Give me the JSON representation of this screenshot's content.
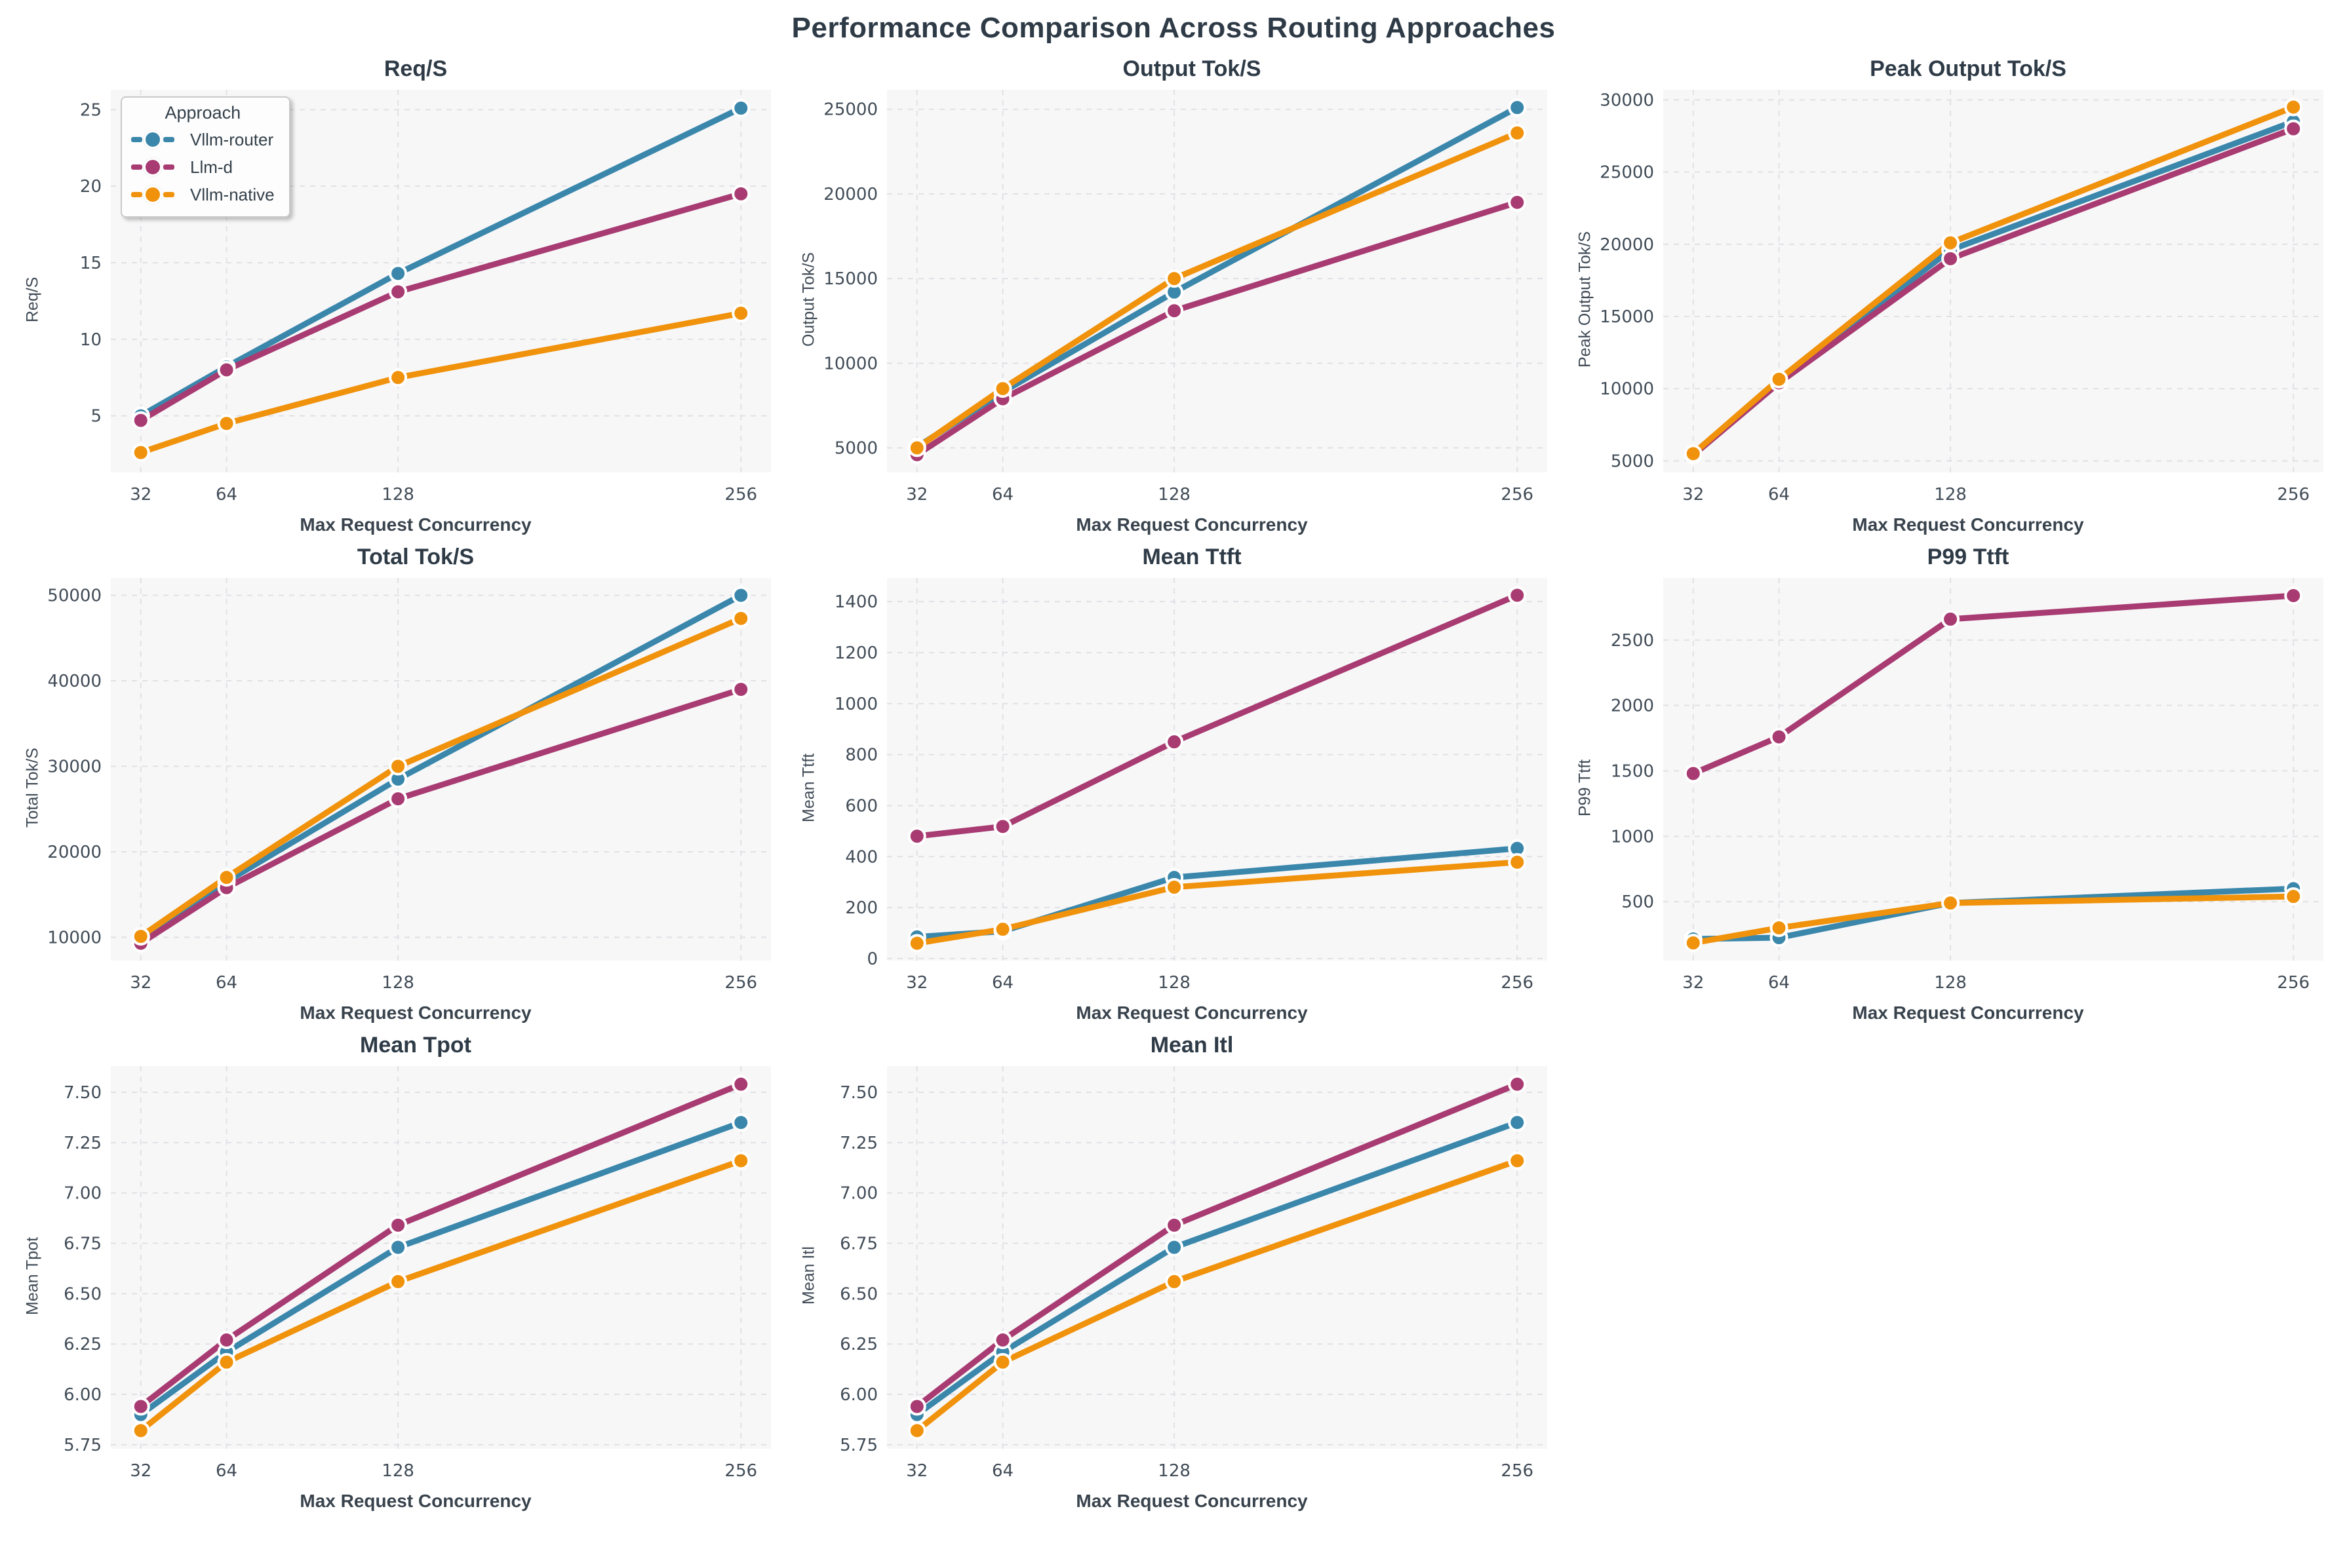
{
  "figure": {
    "title": "Performance Comparison Across Routing Approaches"
  },
  "legend": {
    "title": "Approach",
    "items": [
      {
        "label": "Vllm-router"
      },
      {
        "label": "Llm-d"
      },
      {
        "label": "Vllm-native"
      }
    ]
  },
  "palette": {
    "Vllm-router": "#3A87AB",
    "Llm-d": "#A83B72",
    "Vllm-native": "#F0920B"
  },
  "style": {
    "axes_bg": "#F7F7F8",
    "grid": "#E1E1E5",
    "tick_color": "#414C57",
    "marker_edge": "#FFFFFF"
  },
  "axis": {
    "xlabel": "Max Request Concurrency",
    "x": [
      32,
      64,
      128,
      256
    ],
    "xticks": [
      "32",
      "64",
      "128",
      "256"
    ],
    "xlim": [
      20.8,
      267.2
    ]
  },
  "chart_data": [
    {
      "type": "line",
      "title": "Req/S",
      "ylabel": "Req/S",
      "xlabel": "Max Request Concurrency",
      "x": [
        32,
        64,
        128,
        256
      ],
      "yticks": [
        "5",
        "10",
        "15",
        "20",
        "25"
      ],
      "ylim": [
        1.3,
        26.3
      ],
      "legend_position": "upper-left",
      "grid": true,
      "series": [
        {
          "name": "Vllm-router",
          "values": [
            5.0,
            8.2,
            14.3,
            25.1
          ]
        },
        {
          "name": "Llm-d",
          "values": [
            4.7,
            8.0,
            13.1,
            19.5
          ]
        },
        {
          "name": "Vllm-native",
          "values": [
            2.6,
            4.5,
            7.5,
            11.7
          ]
        }
      ]
    },
    {
      "type": "line",
      "title": "Output Tok/S",
      "ylabel": "Output Tok/S",
      "xlabel": "Max Request Concurrency",
      "x": [
        32,
        64,
        128,
        256
      ],
      "yticks": [
        "5000",
        "10000",
        "15000",
        "20000",
        "25000"
      ],
      "ylim": [
        3550,
        26150
      ],
      "grid": true,
      "series": [
        {
          "name": "Vllm-router",
          "values": [
            5050,
            8300,
            14200,
            25100
          ]
        },
        {
          "name": "Llm-d",
          "values": [
            4600,
            7900,
            13100,
            19500
          ]
        },
        {
          "name": "Vllm-native",
          "values": [
            5000,
            8500,
            15000,
            23600
          ]
        }
      ]
    },
    {
      "type": "line",
      "title": "Peak Output Tok/S",
      "ylabel": "Peak Output Tok/S",
      "xlabel": "Max Request Concurrency",
      "x": [
        32,
        64,
        128,
        256
      ],
      "yticks": [
        "5000",
        "10000",
        "15000",
        "20000",
        "25000",
        "30000"
      ],
      "ylim": [
        4200,
        30700
      ],
      "grid": true,
      "series": [
        {
          "name": "Vllm-router",
          "values": [
            5450,
            10500,
            19600,
            28500
          ]
        },
        {
          "name": "Llm-d",
          "values": [
            5400,
            10400,
            19000,
            28000
          ]
        },
        {
          "name": "Vllm-native",
          "values": [
            5500,
            10650,
            20100,
            29500
          ]
        }
      ]
    },
    {
      "type": "line",
      "title": "Total Tok/S",
      "ylabel": "Total Tok/S",
      "xlabel": "Max Request Concurrency",
      "x": [
        32,
        64,
        128,
        256
      ],
      "yticks": [
        "10000",
        "20000",
        "30000",
        "40000",
        "50000"
      ],
      "ylim": [
        7270,
        52040
      ],
      "grid": true,
      "series": [
        {
          "name": "Vllm-router",
          "values": [
            10000,
            16500,
            28500,
            50000
          ]
        },
        {
          "name": "Llm-d",
          "values": [
            9300,
            15800,
            26200,
            39000
          ]
        },
        {
          "name": "Vllm-native",
          "values": [
            10100,
            17000,
            30000,
            47300
          ]
        }
      ]
    },
    {
      "type": "line",
      "title": "Mean Ttft",
      "ylabel": "Mean Ttft",
      "xlabel": "Max Request Concurrency",
      "x": [
        32,
        64,
        128,
        256
      ],
      "yticks": [
        "0",
        "200",
        "400",
        "600",
        "800",
        "1000",
        "1200",
        "1400"
      ],
      "ylim": [
        -8,
        1493
      ],
      "grid": true,
      "series": [
        {
          "name": "Vllm-router",
          "values": [
            85,
            107,
            318,
            432
          ]
        },
        {
          "name": "Llm-d",
          "values": [
            480,
            518,
            850,
            1425
          ]
        },
        {
          "name": "Vllm-native",
          "values": [
            60,
            115,
            280,
            378
          ]
        }
      ]
    },
    {
      "type": "line",
      "title": "P99 Ttft",
      "ylabel": "P99 Ttft",
      "xlabel": "Max Request Concurrency",
      "x": [
        32,
        64,
        128,
        256
      ],
      "yticks": [
        "500",
        "1000",
        "1500",
        "2000",
        "2500"
      ],
      "ylim": [
        50,
        2975
      ],
      "grid": true,
      "series": [
        {
          "name": "Vllm-router",
          "values": [
            215,
            225,
            490,
            600
          ]
        },
        {
          "name": "Llm-d",
          "values": [
            1480,
            1760,
            2660,
            2840
          ]
        },
        {
          "name": "Vllm-native",
          "values": [
            185,
            300,
            490,
            540
          ]
        }
      ]
    },
    {
      "type": "line",
      "title": "Mean Tpot",
      "ylabel": "Mean Tpot",
      "xlabel": "Max Request Concurrency",
      "x": [
        32,
        64,
        128,
        256
      ],
      "yticks": [
        "5.75",
        "6.00",
        "6.25",
        "6.50",
        "6.75",
        "7.00",
        "7.25",
        "7.50"
      ],
      "ylim": [
        5.73,
        7.63
      ],
      "grid": true,
      "series": [
        {
          "name": "Vllm-router",
          "values": [
            5.9,
            6.21,
            6.73,
            7.35
          ]
        },
        {
          "name": "Llm-d",
          "values": [
            5.94,
            6.27,
            6.84,
            7.54
          ]
        },
        {
          "name": "Vllm-native",
          "values": [
            5.82,
            6.16,
            6.56,
            7.16
          ]
        }
      ]
    },
    {
      "type": "line",
      "title": "Mean Itl",
      "ylabel": "Mean Itl",
      "xlabel": "Max Request Concurrency",
      "x": [
        32,
        64,
        128,
        256
      ],
      "yticks": [
        "5.75",
        "6.00",
        "6.25",
        "6.50",
        "6.75",
        "7.00",
        "7.25",
        "7.50"
      ],
      "ylim": [
        5.73,
        7.63
      ],
      "grid": true,
      "series": [
        {
          "name": "Vllm-router",
          "values": [
            5.9,
            6.21,
            6.73,
            7.35
          ]
        },
        {
          "name": "Llm-d",
          "values": [
            5.94,
            6.27,
            6.84,
            7.54
          ]
        },
        {
          "name": "Vllm-native",
          "values": [
            5.82,
            6.16,
            6.56,
            7.16
          ]
        }
      ]
    }
  ]
}
